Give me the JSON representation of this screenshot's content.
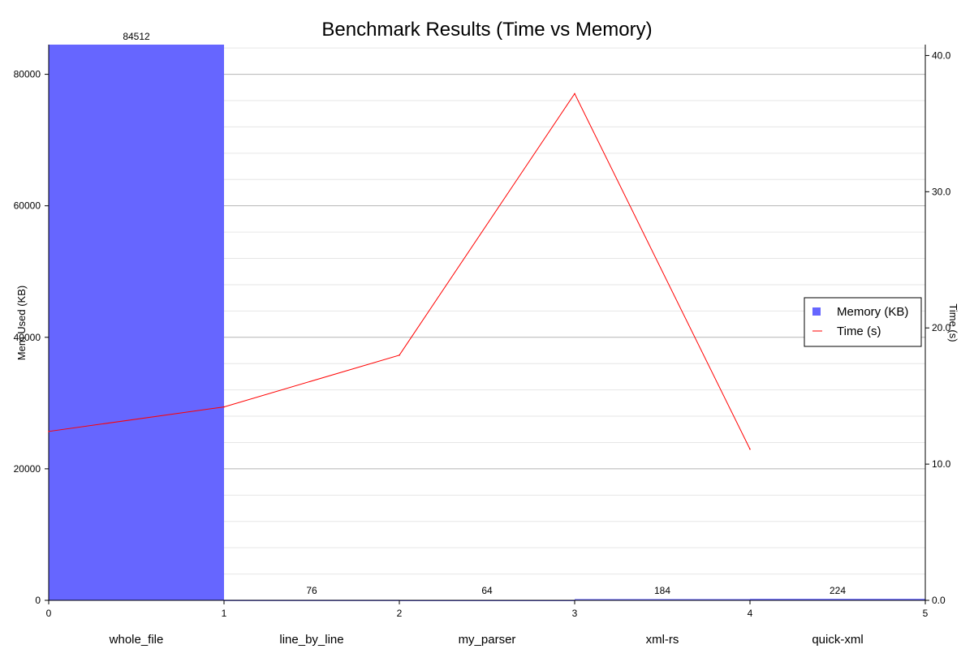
{
  "chart_data": {
    "type": "bar+line",
    "title": "Benchmark Results (Time vs Memory)",
    "ylabel_left": "Mem Used (KB)",
    "ylabel_right": "Time (s)",
    "categories": [
      "whole_file",
      "line_by_line",
      "my_parser",
      "xml-rs",
      "quick-xml"
    ],
    "x_ticks": [
      "0",
      "1",
      "2",
      "3",
      "4",
      "5"
    ],
    "y_left_ticks": [
      "0",
      "20000",
      "40000",
      "60000",
      "80000"
    ],
    "y_right_ticks": [
      "0.0",
      "10.0",
      "20.0",
      "30.0",
      "40.0"
    ],
    "ylim_left": [
      0,
      84512
    ],
    "ylim_right": [
      0,
      40.8
    ],
    "grid": true,
    "legend_position": "right",
    "series": [
      {
        "name": "Memory (KB)",
        "kind": "bar",
        "axis": "left",
        "color": "#6666ff",
        "values": [
          84512,
          76,
          64,
          184,
          224
        ],
        "labels": [
          "84512",
          "76",
          "64",
          "184",
          "224"
        ]
      },
      {
        "name": "Time (s)",
        "kind": "line",
        "axis": "right",
        "color": "#ff0000",
        "x": [
          0,
          1,
          2,
          3,
          4
        ],
        "values": [
          12.4,
          14.2,
          18.0,
          37.2,
          11.1
        ]
      }
    ]
  }
}
